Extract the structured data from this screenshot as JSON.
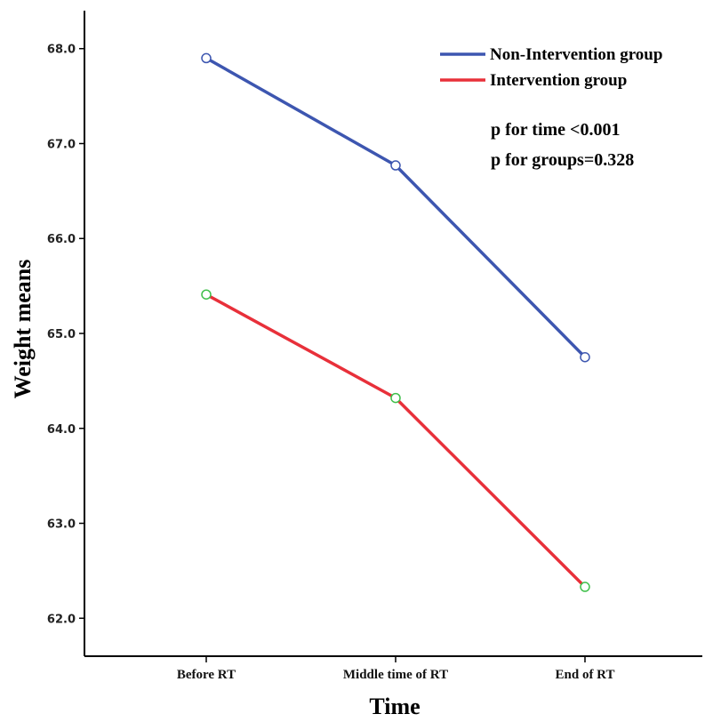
{
  "chart_data": {
    "type": "line",
    "xlabel": "Time",
    "ylabel": "Weight means",
    "categories": [
      "Before RT",
      "Middle time of  RT",
      "End of RT"
    ],
    "ylim": [
      61.6,
      68.4
    ],
    "yticks": [
      "62.0",
      "63.0",
      "64.0",
      "65.0",
      "66.0",
      "67.0",
      "68.0"
    ],
    "series": [
      {
        "name": "Non-Intervention group",
        "values": [
          67.9,
          66.77,
          64.75
        ],
        "line_color": "#3d56b0",
        "marker_color": "#3d56b0"
      },
      {
        "name": "Intervention group",
        "values": [
          65.41,
          64.32,
          62.33
        ],
        "line_color": "#e8303a",
        "marker_color": "#3fbf4a"
      }
    ],
    "annotations": [
      "p for time <0.001",
      "p for groups=0.328"
    ],
    "legend_position": "top-right",
    "grid": false
  }
}
